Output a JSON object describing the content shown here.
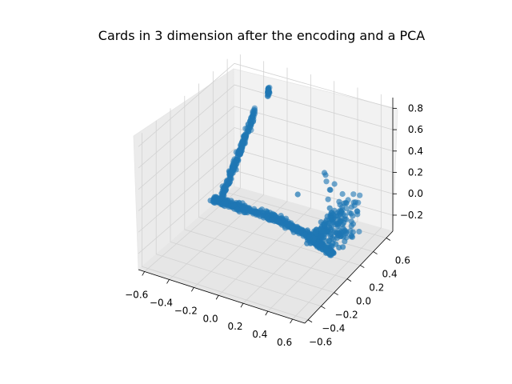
{
  "chart_data": {
    "type": "scatter",
    "projection": "3d",
    "title": "Cards in 3 dimension after the encoding and a PCA",
    "x_axis": {
      "label": "",
      "range": [
        -0.65,
        0.7
      ],
      "ticks": [
        "−0.6",
        "−0.4",
        "−0.2",
        "0.0",
        "0.2",
        "0.4",
        "0.6"
      ]
    },
    "y_axis": {
      "label": "",
      "range": [
        -0.65,
        0.7
      ],
      "ticks": [
        "−0.6",
        "−0.4",
        "−0.2",
        "0.0",
        "0.2",
        "0.4",
        "0.6"
      ]
    },
    "z_axis": {
      "label": "",
      "range": [
        -0.35,
        0.9
      ],
      "ticks": [
        "−0.2",
        "0.0",
        "0.2",
        "0.4",
        "0.6",
        "0.8"
      ]
    },
    "grid": true,
    "legend": "none",
    "marker_color": "#1f77b4",
    "series": [
      {
        "clusters": [
          {
            "description": "curved arc band along the front",
            "x_range": [
              -0.55,
              0.55
            ],
            "y_range": [
              -0.05,
              0.45
            ],
            "z_range": [
              -0.3,
              -0.05
            ]
          },
          {
            "description": "ridge rising up the left side",
            "x_range": [
              -0.55,
              -0.35
            ],
            "y_range": [
              0.2,
              0.6
            ],
            "z_range": [
              -0.2,
              0.55
            ]
          },
          {
            "description": "isolated group near top",
            "x_range": [
              -0.35,
              -0.25
            ],
            "y_range": [
              0.55,
              0.65
            ],
            "z_range": [
              0.6,
              0.8
            ]
          },
          {
            "description": "upward spread on the right",
            "x_range": [
              0.3,
              0.6
            ],
            "y_range": [
              0.0,
              0.4
            ],
            "z_range": [
              -0.2,
              0.35
            ]
          }
        ]
      }
    ]
  }
}
